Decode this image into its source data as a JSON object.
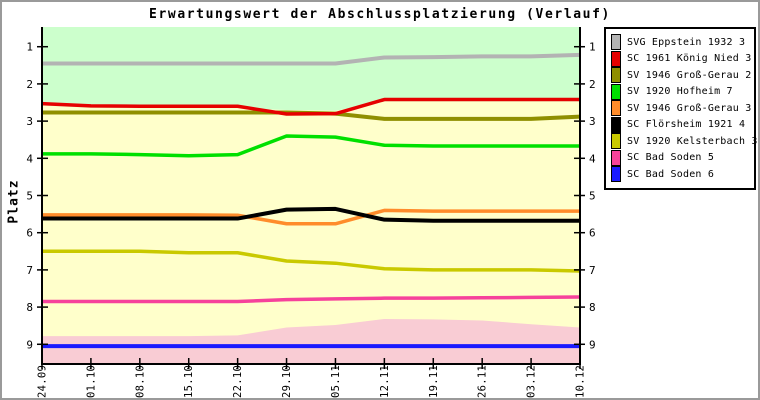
{
  "title": "Erwartungswert der Abschlussplatzierung (Verlauf)",
  "ylabel": "Platz",
  "chart_data": {
    "type": "line",
    "title": "Erwartungswert der Abschlussplatzierung (Verlauf)",
    "xlabel": "",
    "ylabel": "Platz",
    "y_axis_inverted": true,
    "ylim": [
      0.47,
      9.53
    ],
    "y_ticks": [
      1,
      2,
      3,
      4,
      5,
      6,
      7,
      8,
      9
    ],
    "x_tick_labels": [
      "24.09",
      "01.10",
      "08.10",
      "15.10",
      "22.10",
      "29.10",
      "05.11",
      "12.11",
      "19.11",
      "26.11",
      "03.12",
      "10.12"
    ],
    "grid": false,
    "legend_position": "outside-top-right",
    "axis_color": "#000000",
    "series": [
      {
        "name": "SVG Eppstein 1932 3",
        "color": "#b3b3b3",
        "width": 4,
        "values": [
          1.45,
          1.45,
          1.45,
          1.45,
          1.45,
          1.45,
          1.45,
          1.29,
          1.28,
          1.26,
          1.26,
          1.22
        ]
      },
      {
        "name": "SC 1961 König Nied 3",
        "color": "#e60000",
        "width": 3.5,
        "values": [
          2.53,
          2.59,
          2.6,
          2.6,
          2.6,
          2.81,
          2.8,
          2.42,
          2.42,
          2.42,
          2.42,
          2.42
        ]
      },
      {
        "name": "SV 1946 Groß-Gerau 2",
        "color": "#8f8f00",
        "width": 4,
        "values": [
          2.77,
          2.77,
          2.77,
          2.77,
          2.77,
          2.77,
          2.8,
          2.94,
          2.94,
          2.94,
          2.94,
          2.88
        ]
      },
      {
        "name": "SV 1920 Hofheim 7",
        "color": "#00e000",
        "width": 3.5,
        "values": [
          3.88,
          3.88,
          3.9,
          3.93,
          3.9,
          3.4,
          3.43,
          3.65,
          3.67,
          3.67,
          3.67,
          3.67
        ]
      },
      {
        "name": "SV 1946 Groß-Gerau 3",
        "color": "#ff8c2b",
        "width": 3.5,
        "values": [
          5.52,
          5.52,
          5.52,
          5.52,
          5.53,
          5.76,
          5.76,
          5.4,
          5.42,
          5.42,
          5.42,
          5.42
        ]
      },
      {
        "name": "SC Flörsheim 1921 4",
        "color": "#000000",
        "width": 4,
        "values": [
          5.62,
          5.62,
          5.62,
          5.62,
          5.62,
          5.38,
          5.36,
          5.65,
          5.68,
          5.68,
          5.68,
          5.68
        ]
      },
      {
        "name": "SV 1920 Kelsterbach 3",
        "color": "#c9c900",
        "width": 3.5,
        "values": [
          6.5,
          6.5,
          6.5,
          6.54,
          6.54,
          6.76,
          6.82,
          6.97,
          7.0,
          7.0,
          7.0,
          7.03
        ]
      },
      {
        "name": "SC Bad Soden 5",
        "color": "#f6429b",
        "width": 3.5,
        "values": [
          7.85,
          7.85,
          7.85,
          7.85,
          7.85,
          7.8,
          7.78,
          7.76,
          7.76,
          7.75,
          7.74,
          7.73
        ]
      },
      {
        "name": "SC Bad Soden 6",
        "color": "#1a1aff",
        "width": 4,
        "values": [
          9.05,
          9.05,
          9.05,
          9.05,
          9.05,
          9.05,
          9.05,
          9.05,
          9.05,
          9.05,
          9.05,
          9.05
        ]
      }
    ],
    "zones": {
      "top": {
        "name": "promotion-zone",
        "color": "#ccffcc",
        "boundary": [
          2.58,
          2.64,
          2.65,
          2.65,
          2.65,
          2.7,
          2.72,
          2.47,
          2.47,
          2.47,
          2.47,
          2.47
        ]
      },
      "mid": {
        "name": "neutral-zone",
        "color": "#ffffcb"
      },
      "bottom": {
        "name": "relegation-zone",
        "color": "#f9ccd4",
        "boundary": [
          8.78,
          8.78,
          8.78,
          8.78,
          8.76,
          8.55,
          8.48,
          8.32,
          8.33,
          8.36,
          8.46,
          8.55
        ]
      }
    }
  }
}
